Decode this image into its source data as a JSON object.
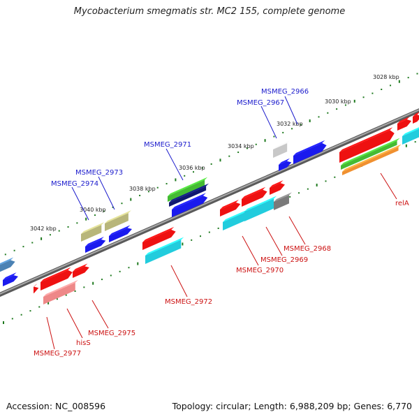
{
  "title": "Mycobacterium smegmatis str. MC2 155, complete genome",
  "footer": {
    "accession": "Accession: NC_008596",
    "summary": "Topology: circular; Length: 6,988,209 bp; Genes: 6,770"
  },
  "ruler_labels": [
    "3028 kbp",
    "3030 kbp",
    "3032 kbp",
    "3034 kbp",
    "3036 kbp",
    "3038 kbp",
    "3040 kbp",
    "3042 kbp"
  ],
  "upper_gene_labels": [
    "MSMEG_2966",
    "MSMEG_2967",
    "MSMEG_2971",
    "MSMEG_2973",
    "MSMEG_2974"
  ],
  "lower_gene_labels": [
    "relA",
    "MSMEG_2968",
    "MSMEG_2969",
    "MSMEG_2970",
    "MSMEG_2972",
    "MSMEG_2975",
    "hisS",
    "MSMEG_2977"
  ],
  "colors": {
    "upper_label": "#1a1acc",
    "lower_label": "#cc1111",
    "red": "#ee1111",
    "blue": "#1a1aee",
    "cyan": "#22ccdd",
    "green": "#44bb33",
    "navy": "#101870",
    "khaki": "#b8b67a",
    "grey": "#c8c8c8",
    "orange": "#f09030",
    "pink": "#ee8888",
    "steel": "#4b82b4",
    "backbone": "#7a7a7a",
    "tick": "#1f7a1f"
  }
}
